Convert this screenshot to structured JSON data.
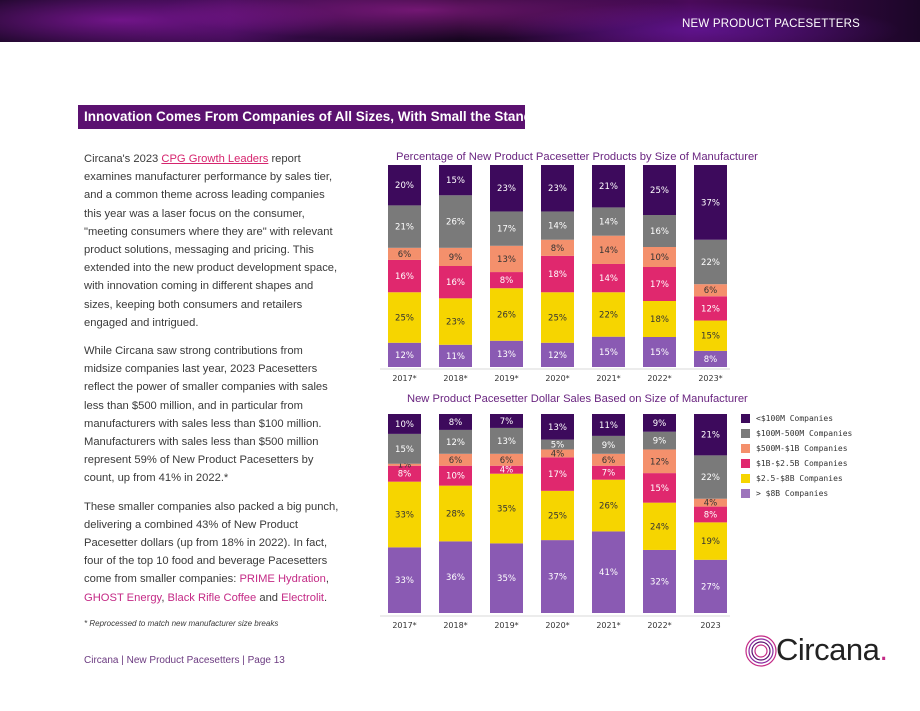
{
  "header": {
    "section_label": "NEW PRODUCT PACESETTERS"
  },
  "section": {
    "title": "Innovation Comes From Companies of All Sizes, With Small the Standout"
  },
  "body": {
    "p1_before_link": "Circana's 2023 ",
    "p1_link": "CPG Growth Leaders",
    "p1_after_link": " report examines manufacturer performance by sales tier, and a common theme across leading companies this year was a laser focus on the consumer, \"meeting consumers where they are\" with relevant product solutions, messaging and pricing. This extended into the new product development space, with innovation coming in different shapes and sizes, keeping both consumers and retailers engaged and intrigued.",
    "p2": "While Circana saw strong contributions from midsize companies last year, 2023 Pacesetters reflect the power of smaller companies with sales less than $500 million, and in particular from manufacturers with sales less than $100 million. Manufacturers with sales less than $500 million represent 59% of New Product Pacesetters by count, up from 41% in 2022.*",
    "p3_text": "These smaller companies also packed a big punch, delivering a combined 43% of New Product Pacesetter dollars (up from 18% in 2022). In fact, four of the top 10 food and beverage Pacesetters come from smaller companies: ",
    "brand1": "PRIME Hydration",
    "sep1": ", ",
    "brand2": "GHOST Energy",
    "sep2": ", ",
    "brand3": "Black Rifle Coffee",
    "sep3": " and ",
    "brand4": "Electrolit",
    "end": "."
  },
  "footnote": "* Reprocessed to match new manufacturer size breaks",
  "footer": "Circana | New Product Pacesetters | Page 13",
  "logo": {
    "text": "Circana",
    "dot": "."
  },
  "chart_data": [
    {
      "type": "bar",
      "stacked": true,
      "title": "Percentage of New Product Pacesetter Products by Size of Manufacturer",
      "categories": [
        "2017*",
        "2018*",
        "2019*",
        "2020*",
        "2021*",
        "2022*",
        "2023*"
      ],
      "ylim": [
        0,
        100
      ],
      "series": [
        {
          "name": "> $8B Companies",
          "values": [
            12,
            11,
            13,
            12,
            15,
            15,
            8
          ]
        },
        {
          "name": "$2.5-$8B Companies",
          "values": [
            25,
            23,
            26,
            25,
            22,
            18,
            15
          ]
        },
        {
          "name": "$1B-$2.5B Companies",
          "values": [
            16,
            16,
            8,
            18,
            14,
            17,
            12
          ]
        },
        {
          "name": "$500M-$1B Companies",
          "values": [
            6,
            9,
            13,
            8,
            14,
            10,
            6
          ]
        },
        {
          "name": "$100M-500M Companies",
          "values": [
            21,
            26,
            17,
            14,
            14,
            16,
            22
          ]
        },
        {
          "name": "<$100M Companies",
          "values": [
            20,
            15,
            23,
            23,
            21,
            25,
            37
          ]
        }
      ]
    },
    {
      "type": "bar",
      "stacked": true,
      "title": "New Product Pacesetter Dollar Sales Based on Size of Manufacturer",
      "categories": [
        "2017*",
        "2018*",
        "2019*",
        "2020*",
        "2021*",
        "2022*",
        "2023"
      ],
      "ylim": [
        0,
        100
      ],
      "series": [
        {
          "name": "> $8B Companies",
          "values": [
            33,
            36,
            35,
            37,
            41,
            32,
            27
          ]
        },
        {
          "name": "$2.5-$8B Companies",
          "values": [
            33,
            28,
            35,
            25,
            26,
            24,
            19
          ]
        },
        {
          "name": "$1B-$2.5B Companies",
          "values": [
            8,
            10,
            4,
            17,
            7,
            15,
            8
          ]
        },
        {
          "name": "$500M-$1B Companies",
          "values": [
            1,
            6,
            6,
            4,
            6,
            12,
            4
          ]
        },
        {
          "name": "$100M-500M Companies",
          "values": [
            15,
            12,
            13,
            5,
            9,
            9,
            22
          ]
        },
        {
          "name": "<$100M Companies",
          "values": [
            10,
            8,
            7,
            13,
            11,
            9,
            21
          ]
        }
      ]
    }
  ],
  "legend": [
    {
      "label": "<$100M Companies",
      "color": "#3d0a5c"
    },
    {
      "label": "$100M-500M Companies",
      "color": "#7a7a7a"
    },
    {
      "label": "$500M-$1B Companies",
      "color": "#f4906c"
    },
    {
      "label": "$1B-$2.5B Companies",
      "color": "#e0286e"
    },
    {
      "label": "$2.5-$8B Companies",
      "color": "#f6d500"
    },
    {
      "label": "> $8B Companies",
      "color": "#9d74bc"
    }
  ],
  "series_colors": {
    "> $8B Companies": "#8a5ab3",
    "$2.5-$8B Companies": "#f6d500",
    "$1B-$2.5B Companies": "#e0286e",
    "$500M-$1B Companies": "#f4906c",
    "$100M-500M Companies": "#7a7a7a",
    "<$100M Companies": "#3d0a5c"
  },
  "series_text_colors": {
    "> $8B Companies": "#ffffff",
    "$2.5-$8B Companies": "#333333",
    "$1B-$2.5B Companies": "#ffffff",
    "$500M-$1B Companies": "#333333",
    "$100M-500M Companies": "#ffffff",
    "<$100M Companies": "#ffffff"
  }
}
